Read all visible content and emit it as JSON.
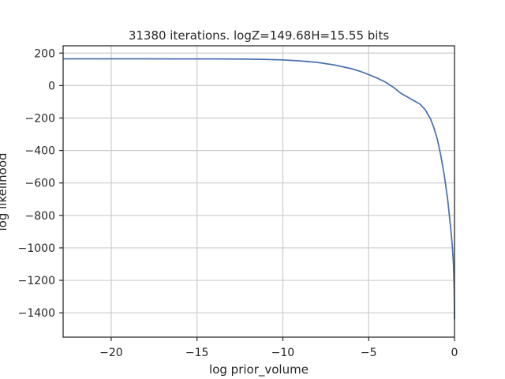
{
  "chart_data": {
    "type": "line",
    "title": "31380 iterations. logZ=149.68H=15.55 bits",
    "xlabel": "log prior_volume",
    "ylabel": "log likelihood",
    "xlim": [
      -22.8,
      0
    ],
    "ylim": [
      -1550,
      245
    ],
    "xticks": [
      -20,
      -15,
      -10,
      -5,
      0
    ],
    "xtick_labels": [
      "−20",
      "−15",
      "−10",
      "−5",
      "0"
    ],
    "yticks": [
      200,
      0,
      -200,
      -400,
      -600,
      -800,
      -1000,
      -1200,
      -1400
    ],
    "ytick_labels": [
      "200",
      "0",
      "−200",
      "−400",
      "−600",
      "−800",
      "−1000",
      "−1200",
      "−1400"
    ],
    "grid": true,
    "line_color": "#4c72b0",
    "series": [
      {
        "x": [
          -22.8,
          -20,
          -18,
          -16,
          -14,
          -12,
          -11,
          -10,
          -9,
          -8,
          -7,
          -6,
          -5.5,
          -5,
          -4.5,
          -4,
          -3.5,
          -3.2,
          -3,
          -2.5,
          -2,
          -1.7,
          -1.4,
          -1.2,
          -1,
          -0.8,
          -0.6,
          -0.4,
          -0.3,
          -0.2,
          -0.12,
          -0.06,
          -0.02,
          0
        ],
        "y": [
          165,
          165,
          165,
          164,
          164,
          163,
          161,
          158,
          152,
          143,
          127,
          104,
          88,
          68,
          46,
          20,
          -15,
          -42,
          -55,
          -85,
          -115,
          -150,
          -205,
          -260,
          -330,
          -430,
          -550,
          -700,
          -800,
          -900,
          -1000,
          -1100,
          -1250,
          -1440
        ]
      }
    ]
  }
}
